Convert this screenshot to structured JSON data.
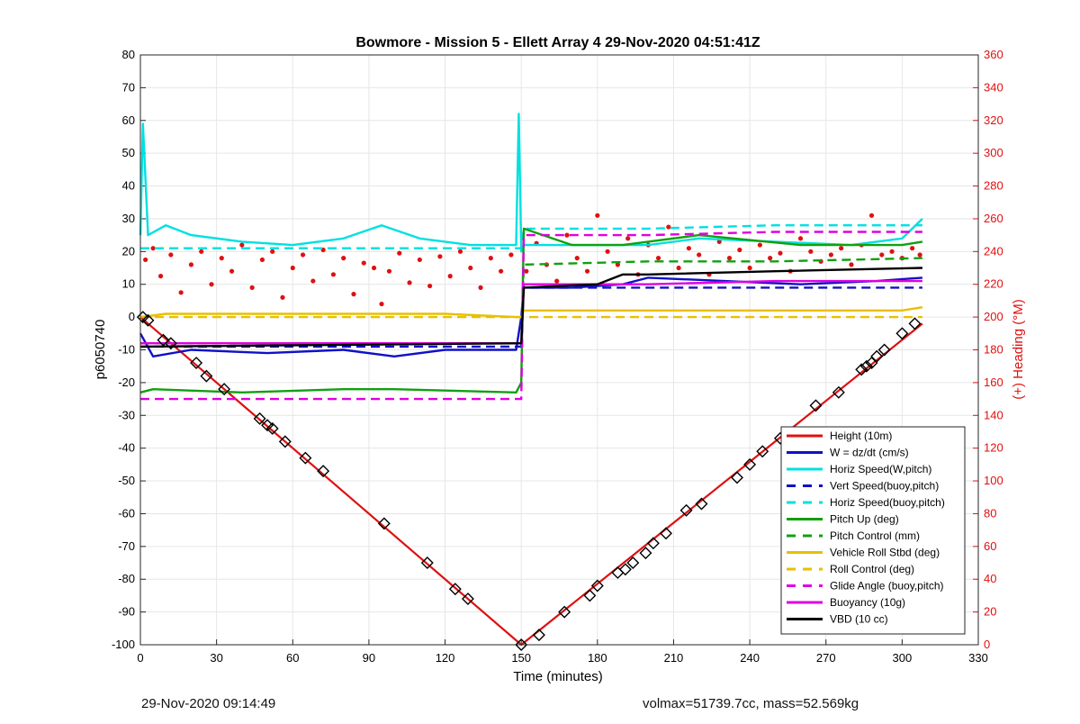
{
  "chart_data": {
    "type": "line",
    "title": "Bowmore - Mission 5 - Ellett Array 4 29-Nov-2020 04:51:41Z",
    "xlabel": "Time (minutes)",
    "ylabel": "p6050740",
    "ylabel_right": "(+) Heading (°M)",
    "xlim": [
      0,
      330
    ],
    "ylim": [
      -100,
      80
    ],
    "ylim_right": [
      0,
      360
    ],
    "x_ticks": [
      "0",
      "30",
      "60",
      "90",
      "120",
      "150",
      "180",
      "210",
      "240",
      "270",
      "300",
      "330"
    ],
    "y_ticks": [
      "80",
      "70",
      "60",
      "50",
      "40",
      "30",
      "20",
      "10",
      "0",
      "-10",
      "-20",
      "-30",
      "-40",
      "-50",
      "-60",
      "-70",
      "-80",
      "-90",
      "-100"
    ],
    "y_ticks_right": [
      "360",
      "340",
      "320",
      "300",
      "280",
      "260",
      "240",
      "220",
      "200",
      "180",
      "160",
      "140",
      "120",
      "100",
      "80",
      "60",
      "40",
      "20",
      "0"
    ],
    "grid": true,
    "legend_position": "bottom-right",
    "series": [
      {
        "name": "Height (10m)",
        "color": "#e01010",
        "dash": "solid",
        "x": [
          0,
          150,
          308
        ],
        "y": [
          0,
          -100,
          -2
        ]
      },
      {
        "name": "W = dz/dt (cm/s)",
        "color": "#1010c8",
        "dash": "solid",
        "x": [
          0,
          5,
          20,
          50,
          80,
          100,
          120,
          148,
          150,
          151,
          170,
          190,
          200,
          230,
          260,
          290,
          308
        ],
        "y": [
          -5,
          -12,
          -10,
          -11,
          -10,
          -12,
          -10,
          -10,
          0,
          9,
          9,
          10,
          12,
          11,
          10,
          11,
          12
        ]
      },
      {
        "name": "Horiz Speed(W,pitch)",
        "color": "#00e0e0",
        "dash": "solid",
        "x": [
          0,
          1,
          3,
          10,
          20,
          40,
          60,
          80,
          95,
          110,
          130,
          148,
          149,
          150,
          151,
          165,
          180,
          200,
          220,
          250,
          280,
          300,
          308
        ],
        "y": [
          25,
          59,
          25,
          28,
          25,
          23,
          22,
          24,
          28,
          24,
          22,
          22,
          62,
          20,
          22,
          22,
          22,
          22,
          24,
          23,
          22,
          24,
          30
        ]
      },
      {
        "name": "Vert Speed(buoy,pitch)",
        "color": "#1010c8",
        "dash": "dashed",
        "x": [
          0,
          150,
          151,
          308
        ],
        "y": [
          -9,
          -9,
          9,
          9
        ]
      },
      {
        "name": "Horiz Speed(buoy,pitch)",
        "color": "#00e0e0",
        "dash": "dashed",
        "x": [
          0,
          150,
          151,
          200,
          250,
          308
        ],
        "y": [
          21,
          21,
          27,
          27,
          28,
          28
        ]
      },
      {
        "name": "Pitch Up (deg)",
        "color": "#10a010",
        "dash": "solid",
        "x": [
          0,
          5,
          40,
          80,
          100,
          148,
          150,
          151,
          170,
          190,
          200,
          220,
          260,
          300,
          308
        ],
        "y": [
          -23,
          -22,
          -23,
          -22,
          -22,
          -23,
          -20,
          27,
          22,
          22,
          23,
          25,
          22,
          22,
          23
        ]
      },
      {
        "name": "Pitch Control (mm)",
        "color": "#10a010",
        "dash": "dashed",
        "x": [
          0,
          150,
          151,
          200,
          250,
          308
        ],
        "y": [
          -8,
          -8,
          16,
          17,
          17,
          18
        ]
      },
      {
        "name": "Vehicle Roll Stbd (deg)",
        "color": "#e8c000",
        "dash": "solid",
        "x": [
          0,
          10,
          40,
          80,
          120,
          148,
          150,
          151,
          180,
          220,
          260,
          300,
          308
        ],
        "y": [
          0,
          1,
          1,
          1,
          1,
          0,
          0,
          2,
          2,
          2,
          2,
          2,
          3
        ]
      },
      {
        "name": "Roll Control (deg)",
        "color": "#e8c000",
        "dash": "dashed",
        "x": [
          0,
          150,
          151,
          308
        ],
        "y": [
          0,
          0,
          0,
          0
        ]
      },
      {
        "name": "Glide Angle (buoy,pitch)",
        "color": "#e000e0",
        "dash": "dashed",
        "x": [
          0,
          150,
          151,
          200,
          250,
          308
        ],
        "y": [
          -25,
          -25,
          25,
          25,
          26,
          26
        ]
      },
      {
        "name": "Buoyancy (10g)",
        "color": "#e000e0",
        "dash": "solid",
        "x": [
          0,
          150,
          151,
          200,
          250,
          308
        ],
        "y": [
          -8,
          -8,
          10,
          10,
          11,
          11
        ]
      },
      {
        "name": "VBD (10 cc)",
        "color": "#000000",
        "dash": "solid",
        "x": [
          0,
          150,
          151,
          180,
          190,
          200,
          250,
          308
        ],
        "y": [
          -9,
          -8,
          9,
          10,
          13,
          13,
          14,
          15
        ]
      }
    ],
    "heading_points": {
      "color": "#e01010",
      "x": [
        2,
        5,
        8,
        12,
        16,
        20,
        24,
        28,
        32,
        36,
        40,
        44,
        48,
        52,
        56,
        60,
        64,
        68,
        72,
        76,
        80,
        84,
        88,
        92,
        95,
        98,
        102,
        106,
        110,
        114,
        118,
        122,
        126,
        130,
        134,
        138,
        142,
        146,
        152,
        156,
        160,
        164,
        168,
        172,
        176,
        180,
        184,
        188,
        192,
        196,
        200,
        204,
        208,
        212,
        216,
        220,
        224,
        228,
        232,
        236,
        240,
        244,
        248,
        252,
        256,
        260,
        264,
        268,
        272,
        276,
        280,
        284,
        288,
        292,
        296,
        300,
        304,
        307
      ],
      "y": [
        235,
        242,
        225,
        238,
        215,
        232,
        240,
        220,
        236,
        228,
        244,
        218,
        235,
        240,
        212,
        230,
        238,
        222,
        241,
        226,
        236,
        214,
        233,
        230,
        208,
        228,
        239,
        221,
        235,
        219,
        237,
        225,
        240,
        230,
        218,
        236,
        228,
        238,
        228,
        245,
        232,
        222,
        250,
        236,
        228,
        262,
        240,
        232,
        248,
        226,
        244,
        236,
        255,
        230,
        242,
        238,
        226,
        246,
        236,
        241,
        230,
        244,
        236,
        239,
        228,
        248,
        240,
        234,
        238,
        242,
        232,
        244,
        262,
        238,
        240,
        236,
        242,
        238
      ]
    },
    "height_markers": {
      "x": [
        1,
        3,
        9,
        12,
        22,
        26,
        33,
        47,
        50,
        52,
        57,
        65,
        72,
        96,
        113,
        124,
        129,
        150,
        157,
        167,
        177,
        180,
        188,
        191,
        194,
        199,
        202,
        207,
        215,
        221,
        235,
        240,
        245,
        252,
        266,
        275,
        284,
        286,
        288,
        290,
        293,
        300,
        305
      ],
      "y": [
        0,
        -1,
        -7,
        -8,
        -14,
        -18,
        -22,
        -31,
        -33,
        -34,
        -38,
        -43,
        -47,
        -63,
        -75,
        -83,
        -86,
        -100,
        -97,
        -90,
        -85,
        -82,
        -78,
        -77,
        -75,
        -72,
        -69,
        -66,
        -59,
        -57,
        -49,
        -45,
        -41,
        -37,
        -27,
        -23,
        -16,
        -15,
        -14,
        -12,
        -10,
        -5,
        -2
      ]
    }
  },
  "footer": {
    "left": "29-Nov-2020 09:14:49",
    "right": "volmax=51739.7cc, mass=52.569kg"
  }
}
